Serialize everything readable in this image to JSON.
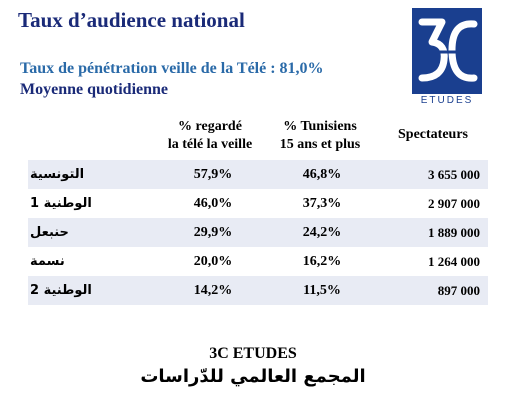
{
  "header": {
    "title": "Taux d’audience national",
    "subtitle_line1": "Taux de pénétration  veille de la Télé : 81,0%",
    "subtitle_line2": "Moyenne quotidienne"
  },
  "logo": {
    "text": "3C",
    "caption": "ETUDES",
    "color": "#1a3f8f"
  },
  "columns": {
    "col1_line1": "% regardé",
    "col1_line2": "la télé la veille",
    "col2_line1": "% Tunisiens",
    "col2_line2": "15 ans et plus",
    "col3": "Spectateurs"
  },
  "rows": [
    {
      "channel": "التونسية",
      "watched": "57,9%",
      "tunisians": "46,8%",
      "viewers": "3 655 000"
    },
    {
      "channel": "الوطنية 1",
      "watched": "46,0%",
      "tunisians": "37,3%",
      "viewers": "2 907 000"
    },
    {
      "channel": "حنبعل",
      "watched": "29,9%",
      "tunisians": "24,2%",
      "viewers": "1 889 000"
    },
    {
      "channel": "نسمة",
      "watched": "20,0%",
      "tunisians": "16,2%",
      "viewers": "1 264 000"
    },
    {
      "channel": "الوطنية 2",
      "watched": "14,2%",
      "tunisians": "11,5%",
      "viewers": "897 000"
    }
  ],
  "footer": {
    "line1": "3C ETUDES",
    "line2": "المجمع العالمي للدّراسات"
  }
}
